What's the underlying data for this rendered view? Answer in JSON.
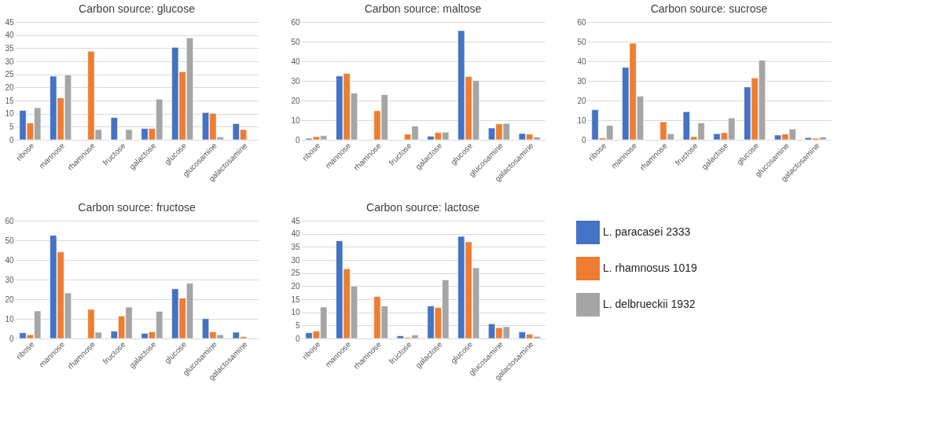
{
  "chart_data": [
    {
      "type": "bar",
      "title": "Carbon source: glucose",
      "categories": [
        "ribose",
        "mannose",
        "rhamnose",
        "fructose",
        "galactose",
        "glucose",
        "glucosamine",
        "galactosamine"
      ],
      "ylim": [
        0,
        45
      ],
      "yticks": [
        0,
        5,
        10,
        15,
        20,
        25,
        30,
        35,
        40,
        45
      ],
      "grid": "y",
      "legend": false,
      "series": [
        {
          "color": "#4472c4",
          "values": [
            11.2,
            24.3,
            null,
            8.5,
            4.3,
            35.3,
            10.4,
            6.2
          ]
        },
        {
          "color": "#ed7d31",
          "values": [
            6.4,
            16,
            33.8,
            null,
            4.3,
            26,
            10.1,
            3.9
          ]
        },
        {
          "color": "#a5a5a5",
          "values": [
            12.2,
            24.8,
            3.9,
            3.9,
            15.5,
            38.9,
            1.1,
            null
          ]
        }
      ]
    },
    {
      "type": "bar",
      "title": "Carbon source: maltose",
      "categories": [
        "ribose",
        "mannose",
        "rhamnose",
        "fructose",
        "galactose",
        "glucose",
        "glucosamine",
        "galactosamine"
      ],
      "ylim": [
        0,
        60
      ],
      "yticks": [
        0,
        10,
        20,
        30,
        40,
        50,
        60
      ],
      "grid": "y",
      "legend": false,
      "series": [
        {
          "color": "#4472c4",
          "values": [
            0.7,
            32.5,
            null,
            null,
            1.8,
            55.6,
            6,
            3.2
          ]
        },
        {
          "color": "#ed7d31",
          "values": [
            1.6,
            33.8,
            14.8,
            2.9,
            3.7,
            32.2,
            8.1,
            2.9
          ]
        },
        {
          "color": "#a5a5a5",
          "values": [
            2.1,
            23.8,
            23,
            7,
            3.9,
            30.2,
            8.3,
            1.4
          ]
        }
      ]
    },
    {
      "type": "bar",
      "title": "Carbon source: sucrose",
      "categories": [
        "ribose",
        "mannose",
        "rhamnose",
        "fructose",
        "galactose",
        "glucose",
        "glucosamine",
        "galactosamine"
      ],
      "ylim": [
        0,
        60
      ],
      "yticks": [
        0,
        10,
        20,
        30,
        40,
        50,
        60
      ],
      "grid": "y",
      "legend": false,
      "series": [
        {
          "color": "#4472c4",
          "values": [
            15.3,
            36.9,
            null,
            14.3,
            3.1,
            26.9,
            2.4,
            1.1
          ]
        },
        {
          "color": "#ed7d31",
          "values": [
            0.9,
            49.2,
            9.1,
            1.6,
            3.6,
            31.5,
            2.9,
            0.8
          ]
        },
        {
          "color": "#a5a5a5",
          "values": [
            7.3,
            22.2,
            3.1,
            8.6,
            11.1,
            40.5,
            5.5,
            1.4
          ]
        }
      ]
    },
    {
      "type": "bar",
      "title": "Carbon source: fructose",
      "categories": [
        "ribose",
        "mannose",
        "rhamnose",
        "fructose",
        "galactose",
        "glucose",
        "glucosamine",
        "galactosamine"
      ],
      "ylim": [
        0,
        60
      ],
      "yticks": [
        0,
        10,
        20,
        30,
        40,
        50,
        60
      ],
      "grid": "y",
      "legend": false,
      "series": [
        {
          "color": "#4472c4",
          "values": [
            2.9,
            52.5,
            null,
            3.7,
            2.6,
            25.3,
            10.1,
            3.2
          ]
        },
        {
          "color": "#ed7d31",
          "values": [
            1.9,
            44.1,
            14.8,
            11.4,
            3.4,
            20.6,
            3.4,
            0.9
          ]
        },
        {
          "color": "#a5a5a5",
          "values": [
            14,
            23.2,
            3.2,
            16,
            13.8,
            28.1,
            1.9,
            null
          ]
        }
      ]
    },
    {
      "type": "bar",
      "title": "Carbon source: lactose",
      "categories": [
        "ribose",
        "mannose",
        "rhamnose",
        "fructose",
        "galactose",
        "glucose",
        "glucosamine",
        "galactosamine"
      ],
      "ylim": [
        0,
        45
      ],
      "yticks": [
        0,
        5,
        10,
        15,
        20,
        25,
        30,
        35,
        40,
        45
      ],
      "grid": "y",
      "legend": "right",
      "series": [
        {
          "name": "L. paracasei 2333",
          "color": "#4472c4",
          "values": [
            2.2,
            37.3,
            null,
            1,
            12.4,
            39,
            5.6,
            2.5
          ]
        },
        {
          "name": "L. rhamnosus 1019",
          "color": "#ed7d31",
          "values": [
            2.8,
            26.6,
            16,
            0.4,
            11.8,
            36.9,
            4.1,
            1.6
          ]
        },
        {
          "name": "L. delbrueckii 1932",
          "color": "#a5a5a5",
          "values": [
            12,
            20,
            12.4,
            1.3,
            22.4,
            27,
            4.5,
            0.8
          ]
        }
      ]
    }
  ]
}
